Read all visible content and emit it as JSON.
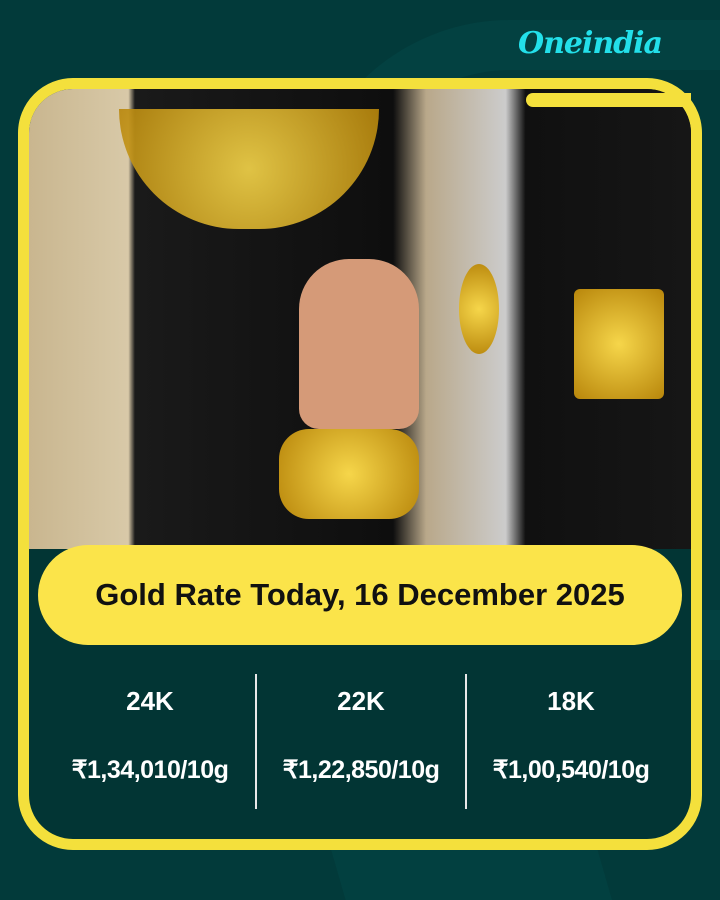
{
  "brand": {
    "logo_text": "Oneindia",
    "accent": "#23e0ea"
  },
  "colors": {
    "background": "#023a3a",
    "frame": "#f4e03c",
    "pill": "#fbe44a"
  },
  "photo": {
    "subject": "gold-jewellery-photo"
  },
  "title": "Gold Rate Today, 16 December 2025",
  "rates": [
    {
      "karat": "24K",
      "price": "₹1,34,010/10g"
    },
    {
      "karat": "22K",
      "price": "₹1,22,850/10g"
    },
    {
      "karat": "18K",
      "price": "₹1,00,540/10g"
    }
  ]
}
